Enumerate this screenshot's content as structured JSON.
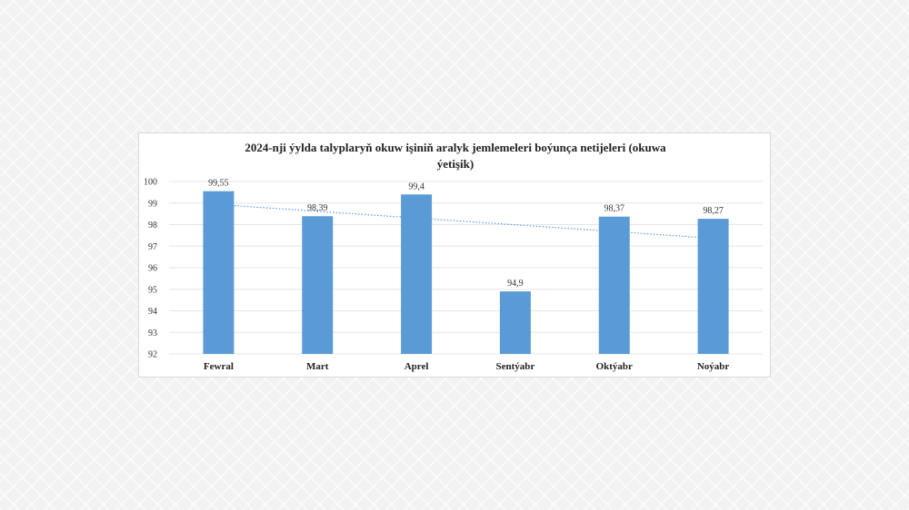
{
  "chart_data": {
    "type": "bar",
    "title_lines": [
      "2024-nji ýylda talyplaryň okuw işiniň aralyk jemlemeleri boýunça netijeleri (okuwa",
      "ýetişik)"
    ],
    "categories": [
      "Fewral",
      "Mart",
      "Aprel",
      "Sentýabr",
      "Oktýabr",
      "Noýabr"
    ],
    "values": [
      99.55,
      98.39,
      99.4,
      94.9,
      98.37,
      98.27
    ],
    "value_labels": [
      "99,55",
      "98,39",
      "99,4",
      "94,9",
      "98,37",
      "98,27"
    ],
    "ylim": [
      92,
      100
    ],
    "yticks": [
      92,
      93,
      94,
      95,
      96,
      97,
      98,
      99,
      100
    ],
    "grid": true,
    "trendline": "linear",
    "colors": {
      "bar": "#5b9bd5",
      "trend": "#5b9bd5",
      "grid": "#e6e6e6"
    }
  }
}
